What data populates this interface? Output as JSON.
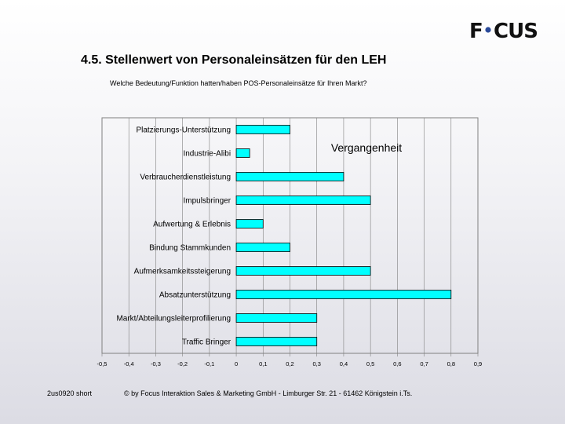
{
  "logo": {
    "text_left": "F",
    "text_right": "CUS"
  },
  "title": "4.5. Stellenwert von Personaleinsätzen für den LEH",
  "subtitle": "Welche Bedeutung/Funktion hatten/haben POS-Personaleinsätze für Ihren Markt?",
  "footer": {
    "left": "2us0920 short",
    "right": "© by Focus Interaktion Sales & Marketing GmbH - Limburger Str. 21 - 61462 Königstein i.Ts."
  },
  "colors": {
    "bar_fill": "#00ffff",
    "bar_stroke": "#000000",
    "grid": "#808080"
  },
  "chart_data": {
    "type": "bar",
    "orientation": "horizontal",
    "legend": "Vergangenheit",
    "categories": [
      "Platzierungs-Unterstützung",
      "Industrie-Alibi",
      "Verbraucherdienstleistung",
      "Impulsbringer",
      "Aufwertung & Erlebnis",
      "Bindung Stammkunden",
      "Aufmerksamkeitssteigerung",
      "Absatzunterstützung",
      "Markt/Abteilungsleiterprofilierung",
      "Traffic Bringer"
    ],
    "series": [
      {
        "name": "Vergangenheit",
        "values": [
          0.2,
          0.05,
          0.4,
          0.5,
          0.1,
          0.2,
          0.5,
          0.8,
          0.3,
          0.3
        ]
      }
    ],
    "xlim": [
      -0.5,
      0.9
    ],
    "xticks": [
      -0.5,
      -0.4,
      -0.3,
      -0.2,
      -0.1,
      0,
      0.1,
      0.2,
      0.3,
      0.4,
      0.5,
      0.6,
      0.7,
      0.8,
      0.9
    ],
    "xtick_labels": [
      "-0,5",
      "-0,4",
      "-0,3",
      "-0,2",
      "-0,1",
      "0",
      "0,1",
      "0,2",
      "0,3",
      "0,4",
      "0,5",
      "0,6",
      "0,7",
      "0,8",
      "0,9"
    ]
  }
}
